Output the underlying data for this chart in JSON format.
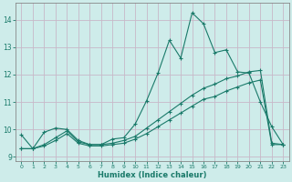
{
  "xlabel": "Humidex (Indice chaleur)",
  "bg_color": "#ceecea",
  "grid_color": "#c8b8c8",
  "line_color": "#1a7a6a",
  "xlim": [
    -0.5,
    23.5
  ],
  "ylim": [
    8.85,
    14.6
  ],
  "xticks": [
    0,
    1,
    2,
    3,
    4,
    5,
    6,
    7,
    8,
    9,
    10,
    11,
    12,
    13,
    14,
    15,
    16,
    17,
    18,
    19,
    20,
    21,
    22,
    23
  ],
  "yticks": [
    9,
    10,
    11,
    12,
    13,
    14
  ],
  "line1_x": [
    0,
    1,
    2,
    3,
    4,
    5,
    6,
    7,
    8,
    9,
    10,
    11,
    12,
    13,
    14,
    15,
    16,
    17,
    18,
    19,
    20,
    21,
    22,
    23
  ],
  "line1_y": [
    9.8,
    9.3,
    9.9,
    10.05,
    10.0,
    9.6,
    9.45,
    9.45,
    9.65,
    9.7,
    10.2,
    11.05,
    12.05,
    13.25,
    12.6,
    14.25,
    13.85,
    12.8,
    12.9,
    12.1,
    12.05,
    11.0,
    10.1,
    9.45
  ],
  "line2_x": [
    0,
    1,
    2,
    3,
    4,
    5,
    6,
    7,
    8,
    9,
    10,
    11,
    12,
    13,
    14,
    15,
    16,
    17,
    18,
    19,
    20,
    21,
    22,
    23
  ],
  "line2_y": [
    9.3,
    9.3,
    9.45,
    9.7,
    9.95,
    9.55,
    9.45,
    9.45,
    9.5,
    9.6,
    9.75,
    10.05,
    10.35,
    10.65,
    10.95,
    11.25,
    11.5,
    11.65,
    11.85,
    11.95,
    12.1,
    12.15,
    9.5,
    9.45
  ],
  "line3_x": [
    0,
    1,
    2,
    3,
    4,
    5,
    6,
    7,
    8,
    9,
    10,
    11,
    12,
    13,
    14,
    15,
    16,
    17,
    18,
    19,
    20,
    21,
    22,
    23
  ],
  "line3_y": [
    9.3,
    9.3,
    9.4,
    9.6,
    9.85,
    9.5,
    9.4,
    9.4,
    9.45,
    9.5,
    9.65,
    9.85,
    10.1,
    10.35,
    10.6,
    10.85,
    11.1,
    11.2,
    11.4,
    11.55,
    11.7,
    11.8,
    9.45,
    9.45
  ]
}
